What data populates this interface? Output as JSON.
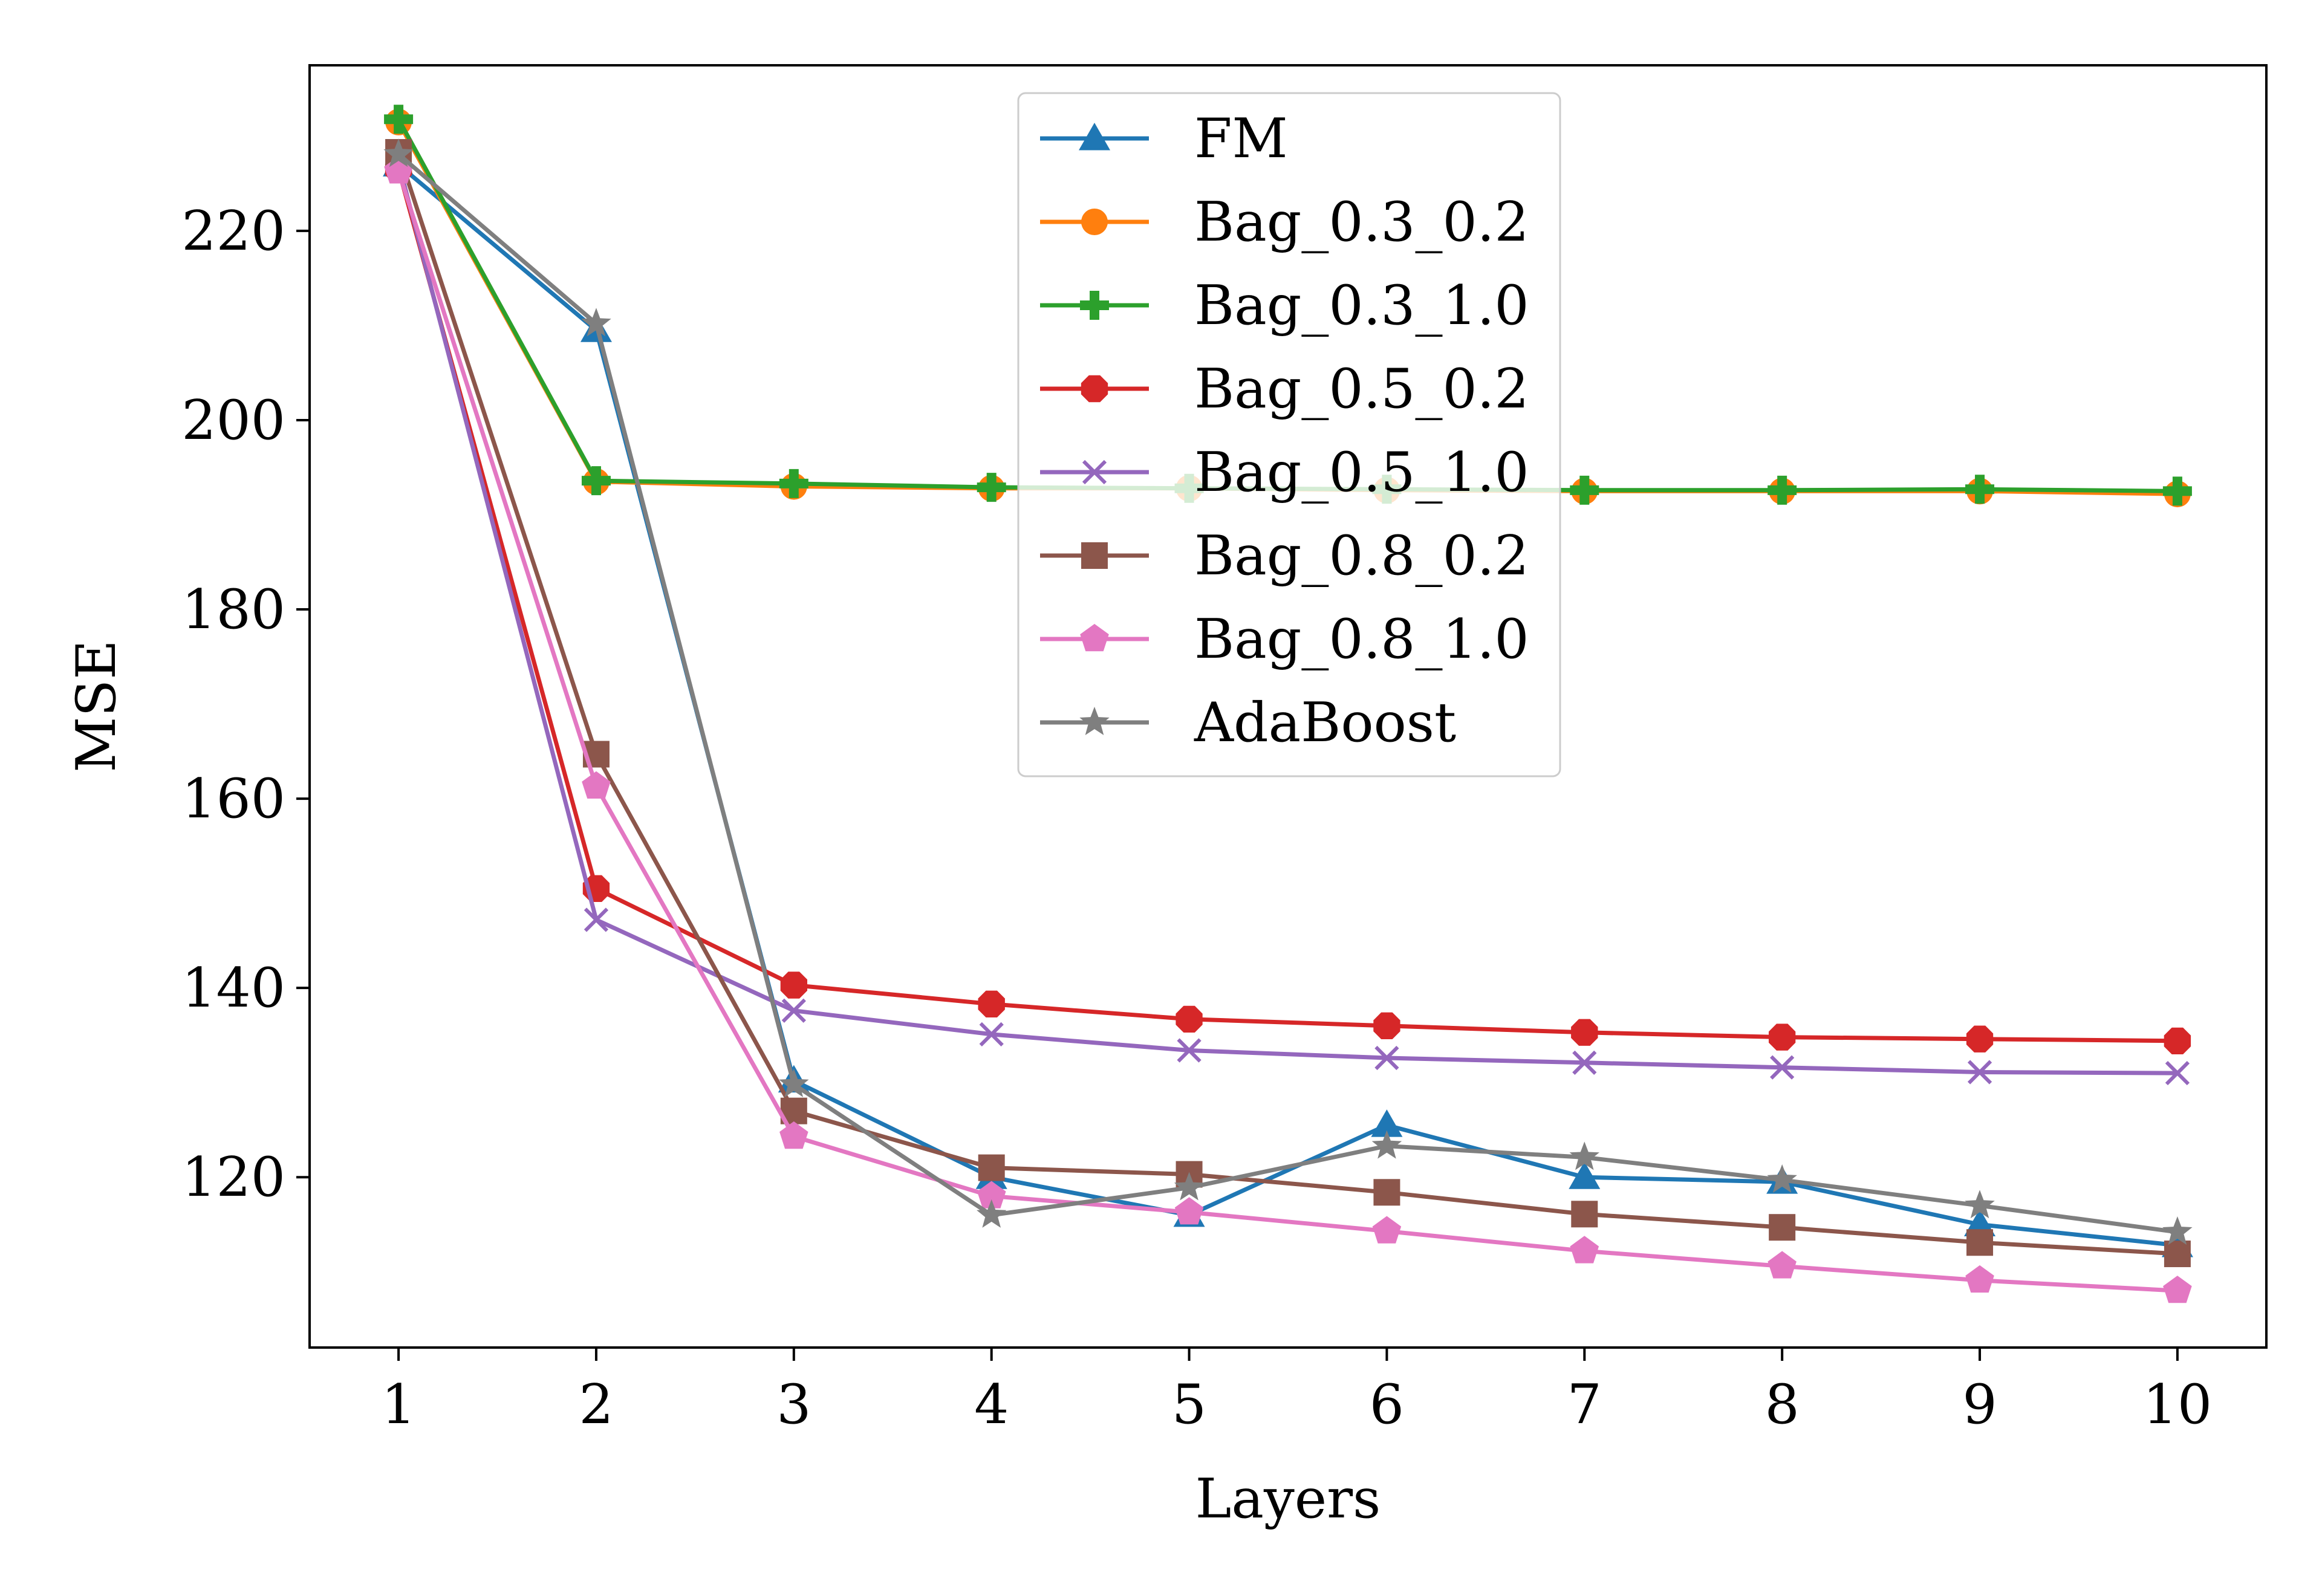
{
  "chart_data": {
    "type": "line",
    "title": "",
    "xlabel": "Layers",
    "ylabel": "MSE",
    "x": [
      1,
      2,
      3,
      4,
      5,
      6,
      7,
      8,
      9,
      10
    ],
    "xlim": [
      0.55,
      10.45
    ],
    "ylim": [
      102,
      237.5
    ],
    "xticks": [
      "1",
      "2",
      "3",
      "4",
      "5",
      "6",
      "7",
      "8",
      "9",
      "10"
    ],
    "yticks": [
      "120",
      "140",
      "160",
      "180",
      "200",
      "220"
    ],
    "ytick_values": [
      120,
      140,
      160,
      180,
      200,
      220
    ],
    "grid": false,
    "legend_position": "top-center",
    "series": [
      {
        "name": "FM",
        "color": "#1f77b4",
        "marker": "triangle",
        "values": [
          227,
          209.5,
          130.2,
          120,
          116,
          125.5,
          120,
          119.5,
          115,
          112.8
        ]
      },
      {
        "name": "Bag_0.3_0.2",
        "color": "#ff7f0e",
        "marker": "circle",
        "values": [
          231.5,
          193.5,
          193.0,
          192.8,
          192.8,
          192.6,
          192.5,
          192.5,
          192.5,
          192.2
        ]
      },
      {
        "name": "Bag_0.3_1.0",
        "color": "#2ca02c",
        "marker": "plus",
        "values": [
          231.8,
          193.6,
          193.3,
          192.9,
          192.8,
          192.7,
          192.6,
          192.6,
          192.7,
          192.5
        ]
      },
      {
        "name": "Bag_0.5_0.2",
        "color": "#d62728",
        "marker": "octagon",
        "values": [
          226.5,
          150.5,
          140.3,
          138.3,
          136.7,
          136.0,
          135.3,
          134.8,
          134.6,
          134.4
        ]
      },
      {
        "name": "Bag_0.5_1.0",
        "color": "#9467bd",
        "marker": "x",
        "values": [
          227.2,
          147.2,
          137.6,
          135.1,
          133.4,
          132.6,
          132.1,
          131.6,
          131.1,
          131.0
        ]
      },
      {
        "name": "Bag_0.8_0.2",
        "color": "#8c564b",
        "marker": "square",
        "values": [
          228.3,
          164.7,
          127.0,
          121.0,
          120.3,
          118.4,
          116.1,
          114.7,
          113.1,
          111.9
        ]
      },
      {
        "name": "Bag_0.8_1.0",
        "color": "#e377c2",
        "marker": "pentagon",
        "values": [
          226.3,
          161.3,
          124.3,
          118.0,
          116.3,
          114.3,
          112.2,
          110.6,
          109.1,
          108.0
        ]
      },
      {
        "name": "AdaBoost",
        "color": "#7f7f7f",
        "marker": "star",
        "values": [
          228.1,
          210.2,
          129.8,
          116.0,
          118.9,
          123.3,
          122.1,
          119.7,
          117.0,
          114.2
        ]
      }
    ]
  }
}
